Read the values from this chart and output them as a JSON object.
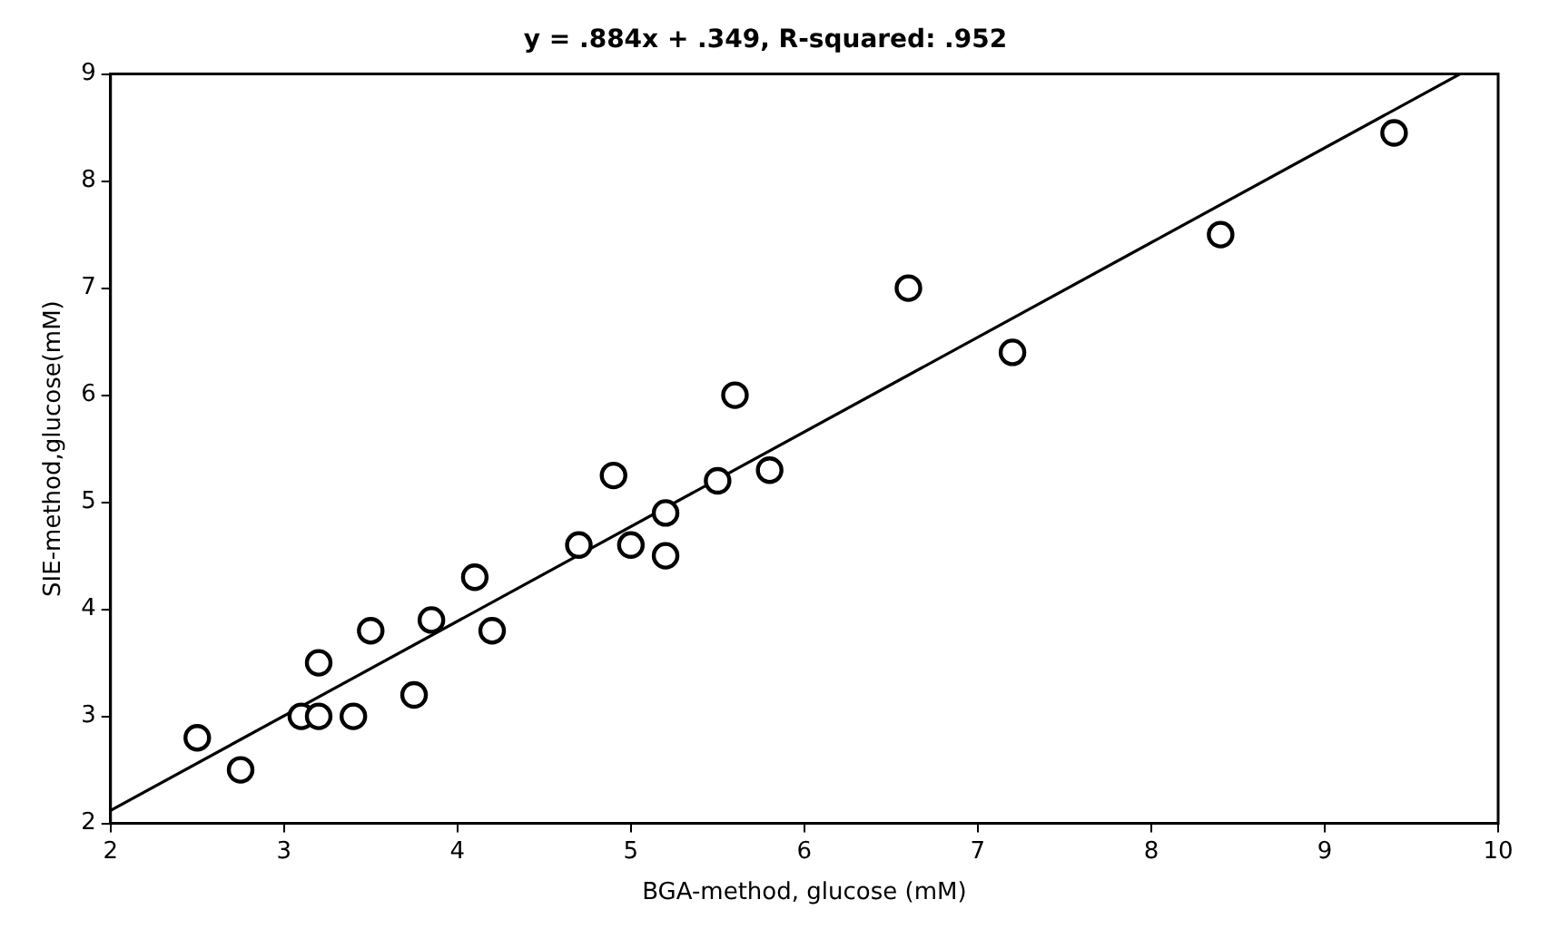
{
  "chart_data": {
    "type": "scatter",
    "title": "y = .884x + .349, R-squared: .952",
    "xlabel": "BGA-method, glucose (mM)",
    "ylabel": "SIE-method,glucose(mM)",
    "xlim": [
      2,
      10
    ],
    "xticks": [
      2,
      3,
      4,
      5,
      6,
      7,
      8,
      9,
      10
    ],
    "ylim": [
      2,
      9
    ],
    "yticks": [
      2,
      3,
      4,
      5,
      6,
      7,
      8,
      9
    ],
    "grid": false,
    "legend": false,
    "marker": "circle",
    "series": [
      {
        "color": "#000000",
        "x": [
          2.5,
          2.75,
          3.1,
          3.2,
          3.2,
          3.4,
          3.5,
          3.75,
          3.85,
          4.1,
          4.2,
          4.7,
          4.9,
          5.0,
          5.2,
          5.2,
          5.5,
          5.6,
          5.8,
          6.6,
          7.2,
          8.4,
          9.4
        ],
        "values": [
          2.8,
          2.5,
          3.0,
          3.0,
          3.5,
          3.0,
          3.8,
          3.2,
          3.9,
          4.3,
          3.8,
          4.6,
          5.25,
          4.6,
          4.9,
          4.5,
          5.2,
          6.0,
          5.3,
          7.0,
          6.4,
          7.5,
          8.45
        ]
      },
      {
        "type": "line",
        "color": "#000000",
        "marker": "none",
        "line_style": "solid",
        "x": [
          2,
          9.78
        ],
        "values": [
          2.12,
          9.0
        ]
      }
    ]
  }
}
